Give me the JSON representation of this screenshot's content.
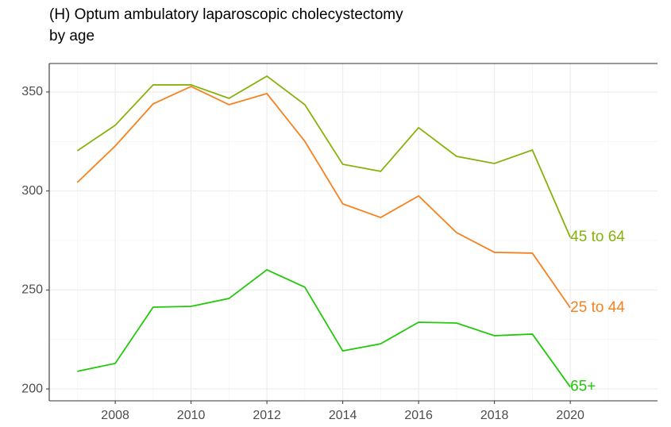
{
  "chart_data": {
    "type": "line",
    "title": "(H) Optum ambulatory laparoscopic cholecystectomy\nby age",
    "x": [
      2007,
      2008,
      2009,
      2010,
      2011,
      2012,
      2013,
      2014,
      2015,
      2016,
      2017,
      2018,
      2019,
      2020
    ],
    "series": [
      {
        "name": "45 to 64",
        "color": "#86b20a",
        "values": [
          320.3,
          333.2,
          353.6,
          353.6,
          346.8,
          358,
          343.6,
          313.5,
          309.9,
          332,
          317.5,
          313.9,
          320.7,
          276.6
        ]
      },
      {
        "name": "25 to 44",
        "color": "#f5821f",
        "values": [
          304.3,
          322.7,
          344,
          352.8,
          343.6,
          349.2,
          325.1,
          293.5,
          286.6,
          297.5,
          279,
          269,
          268.6,
          241
        ]
      },
      {
        "name": "65+",
        "color": "#22c90a",
        "values": [
          208.9,
          212.9,
          241.3,
          241.7,
          245.7,
          260.2,
          251.4,
          219.2,
          222.8,
          233.7,
          233.3,
          226.9,
          227.7,
          201
        ]
      }
    ],
    "xlim": [
      2006.26,
      2022.3
    ],
    "xticks": [
      2008,
      2010,
      2012,
      2014,
      2016,
      2018,
      2020
    ],
    "ylim": [
      194,
      364.4
    ],
    "yticks": [
      200,
      250,
      300,
      350
    ],
    "grid": true
  }
}
